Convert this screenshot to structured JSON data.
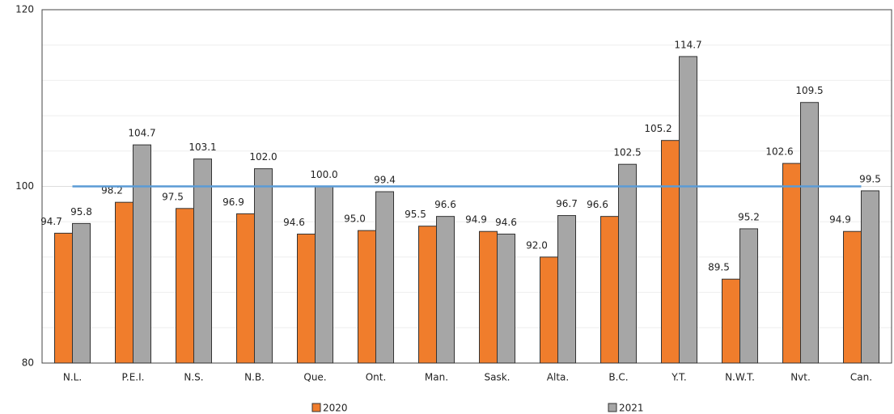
{
  "chart_data": {
    "type": "bar",
    "categories": [
      "N.L.",
      "P.E.I.",
      "N.S.",
      "N.B.",
      "Que.",
      "Ont.",
      "Man.",
      "Sask.",
      "Alta.",
      "B.C.",
      "Y.T.",
      "N.W.T.",
      "Nvt.",
      "Can."
    ],
    "series": [
      {
        "name": "2020",
        "color": "#f07d2c",
        "values": [
          94.7,
          98.2,
          97.5,
          96.9,
          94.6,
          95.0,
          95.5,
          94.9,
          92.0,
          96.6,
          105.2,
          89.5,
          102.6,
          94.9
        ],
        "value_labels": [
          "94.7",
          "98.2",
          "97.5",
          "96.9",
          "94.6",
          "95.0",
          "95.5",
          "94.9",
          "92.0",
          "96.6",
          "105.2",
          "89.5",
          "102.6",
          "94.9"
        ]
      },
      {
        "name": "2021",
        "color": "#a6a6a6",
        "values": [
          95.8,
          104.7,
          103.1,
          102.0,
          100.0,
          99.4,
          96.6,
          94.6,
          96.7,
          102.5,
          114.7,
          95.2,
          109.5,
          99.5
        ],
        "value_labels": [
          "95.8",
          "104.7",
          "103.1",
          "102.0",
          "100.0",
          "99.4",
          "96.6",
          "94.6",
          "96.7",
          "102.5",
          "114.7",
          "95.2",
          "109.5",
          "99.5"
        ]
      }
    ],
    "ylim": [
      80,
      120
    ],
    "yticks": [
      80,
      100,
      120
    ],
    "minor_grid": [
      84,
      88,
      92,
      96,
      104,
      108,
      112,
      116
    ],
    "reference_line": {
      "value": 100,
      "color": "#5b9bd5"
    },
    "legend": "bottom"
  }
}
